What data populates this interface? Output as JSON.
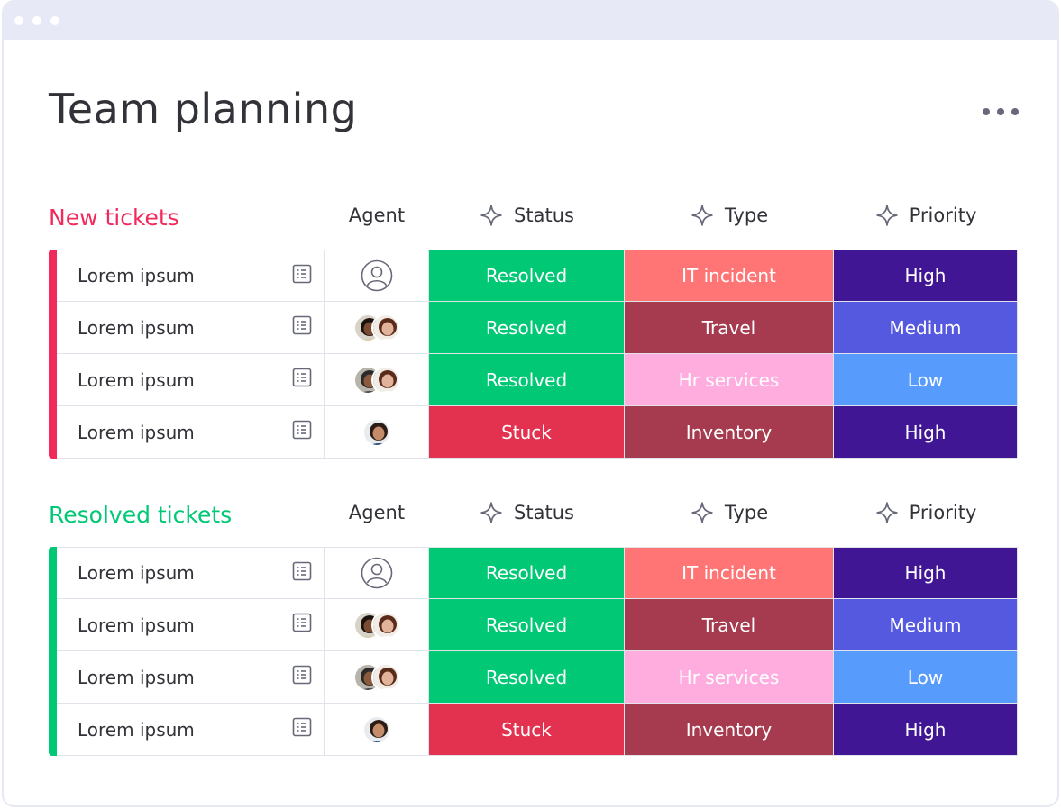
{
  "page": {
    "title": "Team planning"
  },
  "columns": {
    "agent": "Agent",
    "status": "Status",
    "type": "Type",
    "priority": "Priority"
  },
  "colors": {
    "new_group": "#f2295b",
    "resolved_group": "#00c875",
    "Resolved": "#00c875",
    "Stuck": "#e2324f",
    "IT incident": "#ff7575",
    "Travel": "#a63a4e",
    "Hr services": "#ffadde",
    "Inventory": "#a63a4e",
    "High": "#401694",
    "Medium": "#5559df",
    "Low": "#579bfc"
  },
  "groups": [
    {
      "title": "New tickets",
      "color": "#f2295b",
      "rows": [
        {
          "name": "Lorem ipsum",
          "agent": "empty-avatar",
          "status": "Resolved",
          "type": "IT incident",
          "priority": "High"
        },
        {
          "name": "Lorem ipsum",
          "agent": "two-women-avatars",
          "status": "Resolved",
          "type": "Travel",
          "priority": "Medium"
        },
        {
          "name": "Lorem ipsum",
          "agent": "man-woman-avatars",
          "status": "Resolved",
          "type": "Hr services",
          "priority": "Low"
        },
        {
          "name": "Lorem ipsum",
          "agent": "man-avatar",
          "status": "Stuck",
          "type": "Inventory",
          "priority": "High"
        }
      ]
    },
    {
      "title": "Resolved tickets",
      "color": "#00c875",
      "rows": [
        {
          "name": "Lorem ipsum",
          "agent": "empty-avatar",
          "status": "Resolved",
          "type": "IT incident",
          "priority": "High"
        },
        {
          "name": "Lorem ipsum",
          "agent": "two-women-avatars",
          "status": "Resolved",
          "type": "Travel",
          "priority": "Medium"
        },
        {
          "name": "Lorem ipsum",
          "agent": "man-woman-avatars",
          "status": "Resolved",
          "type": "Hr services",
          "priority": "Low"
        },
        {
          "name": "Lorem ipsum",
          "agent": "man-avatar",
          "status": "Stuck",
          "type": "Inventory",
          "priority": "High"
        }
      ]
    }
  ]
}
